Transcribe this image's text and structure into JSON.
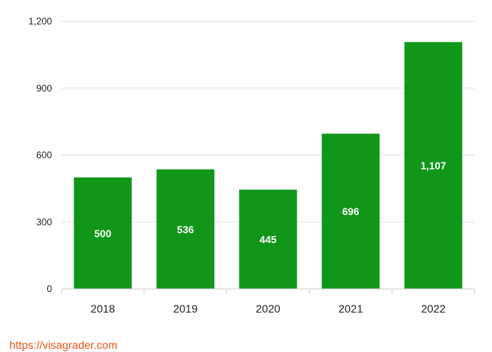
{
  "chart_data": {
    "type": "bar",
    "categories": [
      "2018",
      "2019",
      "2020",
      "2021",
      "2022"
    ],
    "values": [
      500,
      536,
      445,
      696,
      1107
    ],
    "data_labels": [
      "500",
      "536",
      "445",
      "696",
      "1,107"
    ],
    "y_ticks": [
      0,
      300,
      600,
      900,
      1200
    ],
    "y_tick_labels": [
      "0",
      "300",
      "600",
      "900",
      "1,200"
    ],
    "ylim": [
      0,
      1200
    ],
    "grid": true,
    "bar_color": "#109618",
    "grid_color": "#e0e0e0",
    "axis_color": "#cccccc"
  },
  "footer": {
    "source_link": "https://visagrader.com",
    "source_link_color": "#e8541c"
  }
}
